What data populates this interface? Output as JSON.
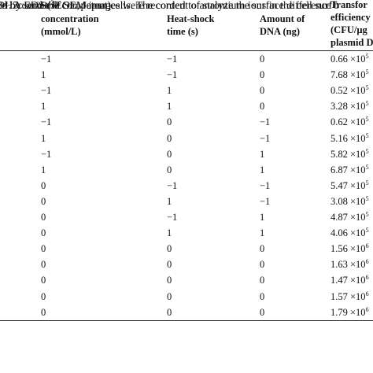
{
  "table": {
    "header": {
      "col1": {
        "base": "Sr",
        "sup": "2+",
        "lines": [
          "concentration",
          "(mmol/L)"
        ]
      },
      "col2": {
        "lines": [
          "Heat-shock",
          "time (s)"
        ]
      },
      "col3": {
        "lines": [
          "Amount of",
          "DNA (ng)"
        ]
      },
      "col4": {
        "lines": [
          "Transfor",
          "efficiency",
          "(CFU/µg",
          "plasmid D"
        ]
      }
    },
    "rows": [
      [
        "−1",
        "−1",
        "0",
        "0.66 ×10",
        "5"
      ],
      [
        "1",
        "−1",
        "0",
        "7.68 ×10",
        "5"
      ],
      [
        "−1",
        "1",
        "0",
        "0.52 ×10",
        "5"
      ],
      [
        "1",
        "1",
        "0",
        "3.28 ×10",
        "5"
      ],
      [
        "−1",
        "0",
        "−1",
        "0.62 ×10",
        "5"
      ],
      [
        "1",
        "0",
        "−1",
        "5.16 ×10",
        "5"
      ],
      [
        "−1",
        "0",
        "1",
        "5.82 ×10",
        "5"
      ],
      [
        "1",
        "0",
        "1",
        "6.87 ×10",
        "5"
      ],
      [
        "0",
        "−1",
        "−1",
        "5.47 ×10",
        "5"
      ],
      [
        "0",
        "1",
        "−1",
        "3.08 ×10",
        "5"
      ],
      [
        "0",
        "−1",
        "1",
        "4.87 ×10",
        "5"
      ],
      [
        "0",
        "1",
        "1",
        "4.06 ×10",
        "5"
      ],
      [
        "0",
        "0",
        "0",
        "1.56 ×10",
        "6"
      ],
      [
        "0",
        "0",
        "0",
        "1.63 ×10",
        "6"
      ],
      [
        "0",
        "0",
        "0",
        "1.47 ×10",
        "6"
      ],
      [
        "0",
        "0",
        "0",
        "1.57 ×10",
        "6"
      ],
      [
        "0",
        "0",
        "0",
        "1.79 ×10",
        "6"
      ]
    ]
  },
  "paragraph": {
    "lines": [
      "0×. A series of SEM images were recorded to analyze the surface difference b",
      "DH5α and the competent cells. The content of strontium ions in the cell surf",
      "ed by EDS (JEOL, Japan)."
    ]
  }
}
